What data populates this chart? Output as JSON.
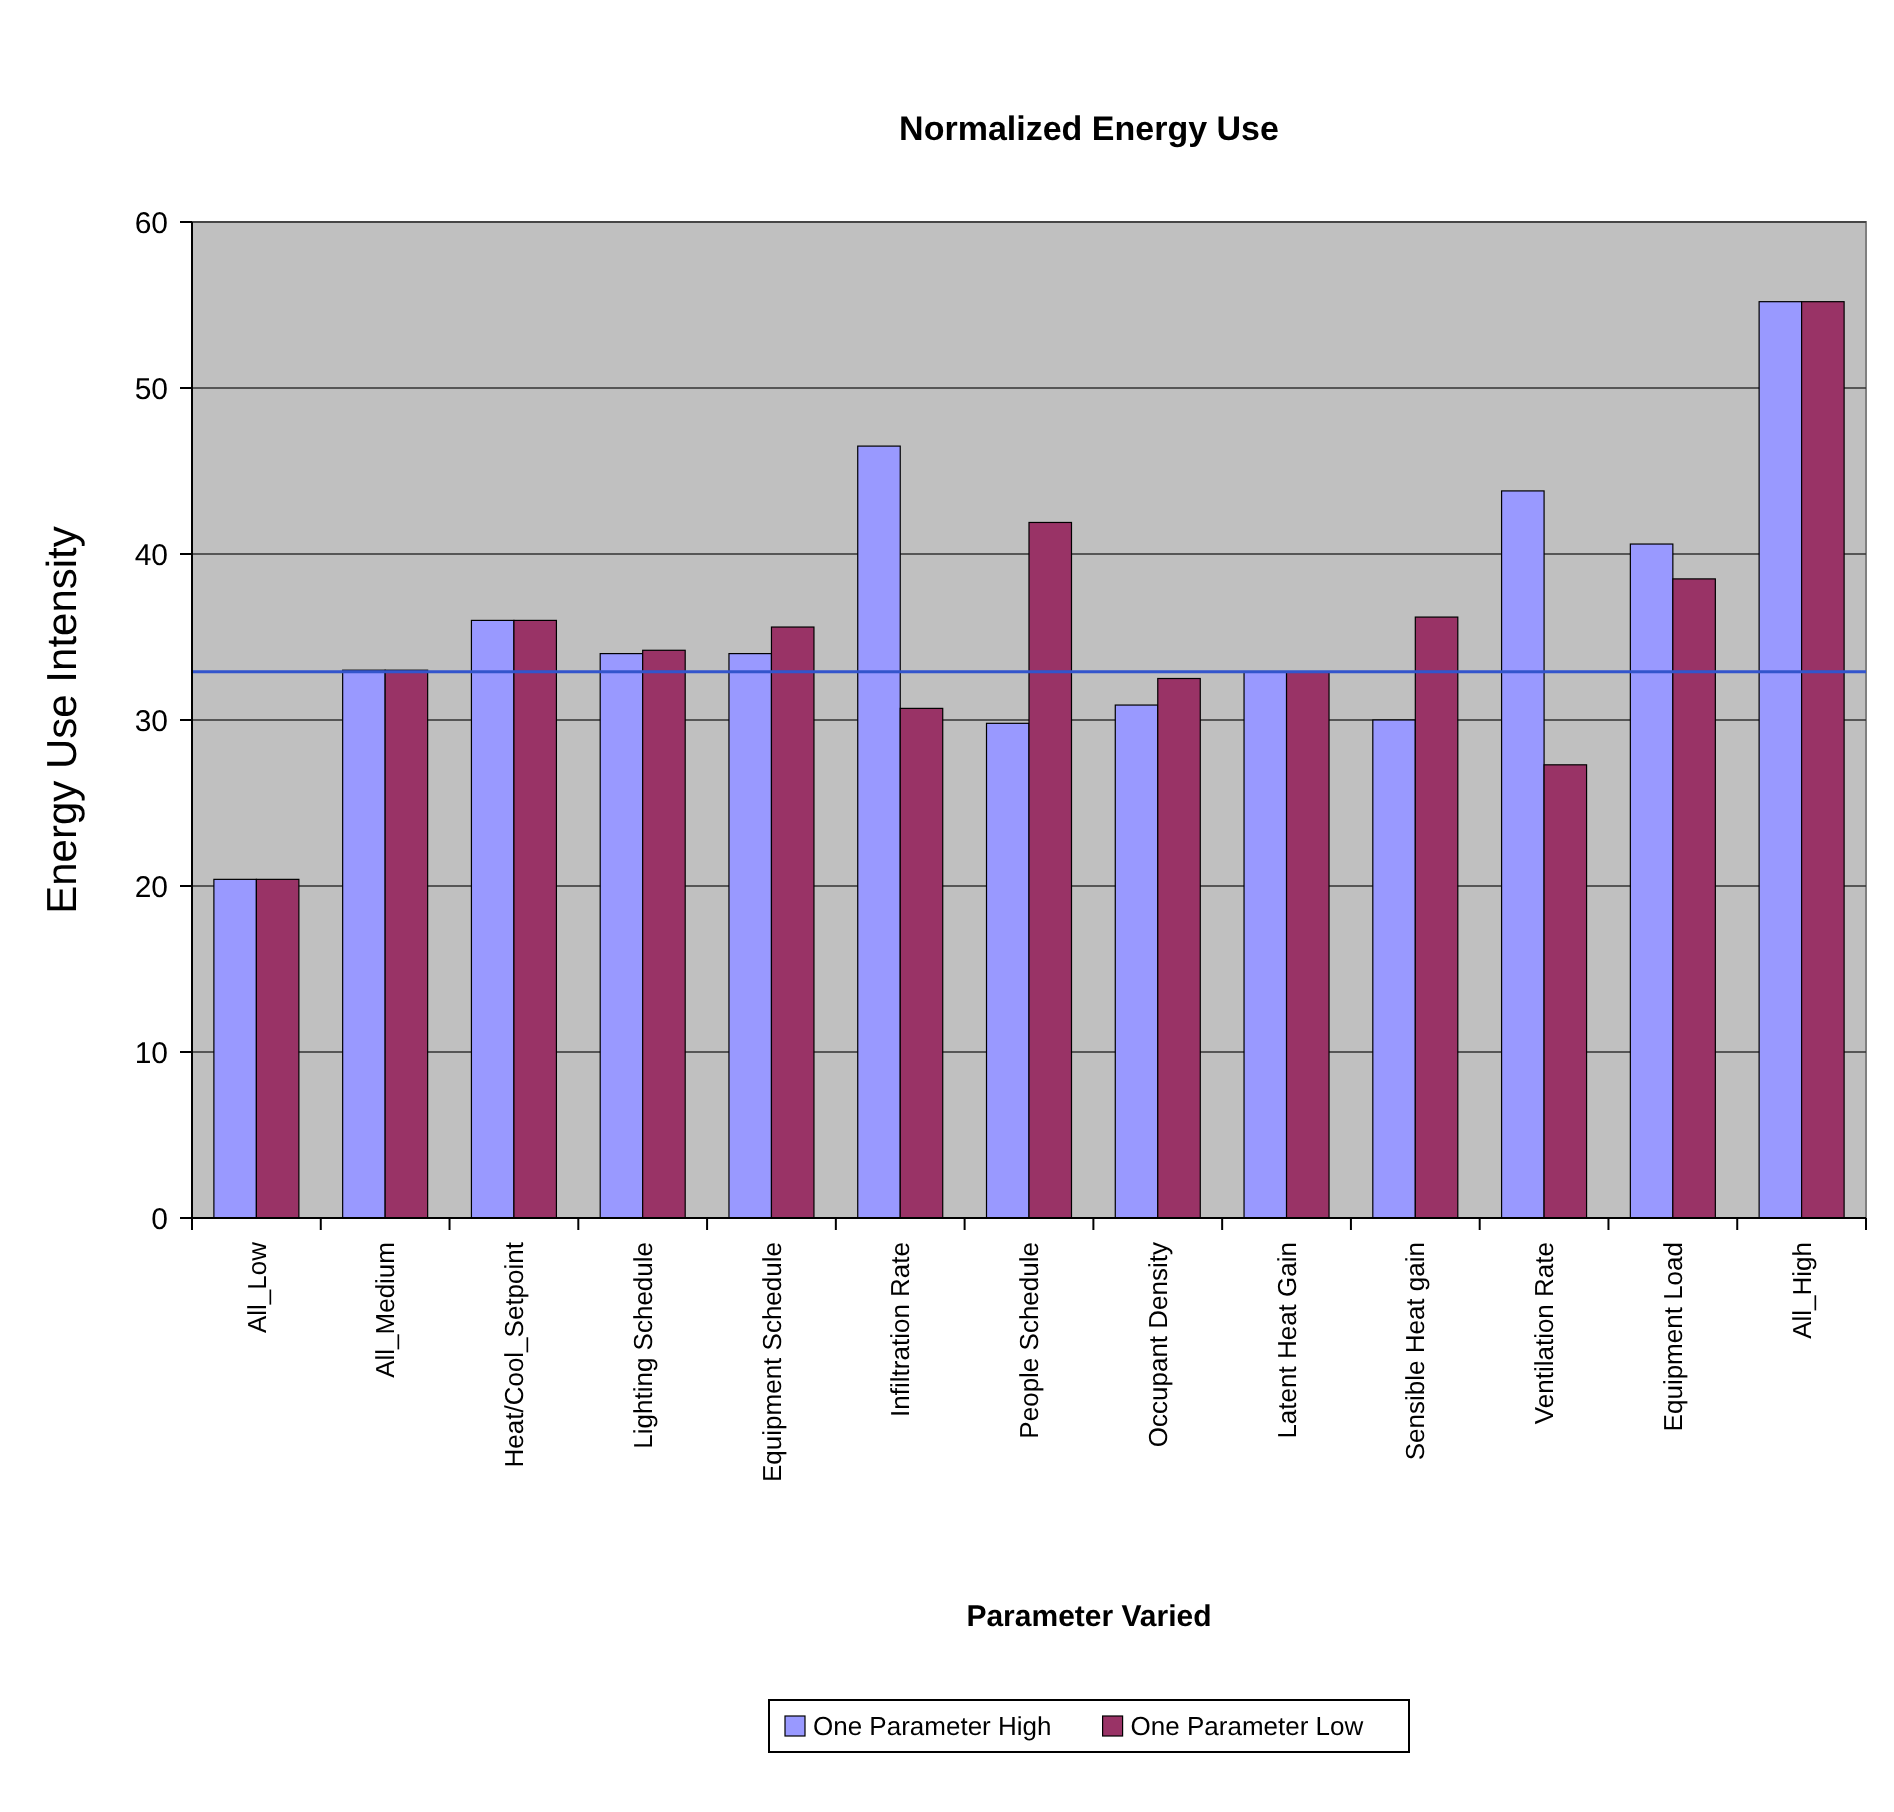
{
  "chart_data": {
    "type": "bar",
    "title": "Normalized Energy Use",
    "xlabel": "Parameter Varied",
    "ylabel": "Energy Use Intensity",
    "categories": [
      "All_Low",
      "All_Medium",
      "Heat/Cool_Setpoint",
      "Lighting Schedule",
      "Equipment Schedule",
      "Infiltration Rate",
      "People Schedule",
      "Occupant Density",
      "Latent Heat Gain",
      "Sensible Heat gain",
      "Ventilation Rate",
      "Equipment Load",
      "All_High"
    ],
    "series": [
      {
        "name": "One Parameter High",
        "color": "#9999ff",
        "values": [
          20.4,
          33,
          36,
          34,
          34,
          46.5,
          29.8,
          30.9,
          32.9,
          30,
          43.8,
          40.6,
          55.2
        ]
      },
      {
        "name": "One Parameter Low",
        "color": "#993366",
        "values": [
          20.4,
          33,
          36,
          34.2,
          35.6,
          30.7,
          41.9,
          32.5,
          32.9,
          36.2,
          27.3,
          38.5,
          55.2
        ]
      }
    ],
    "ylim": [
      0,
      60
    ],
    "yticks": [
      0,
      10,
      20,
      30,
      40,
      50,
      60
    ],
    "grid": "y",
    "legend": "bottom",
    "ref_lines": [
      {
        "axis": "y",
        "value": 32.9,
        "color": "#3355cc"
      }
    ]
  }
}
